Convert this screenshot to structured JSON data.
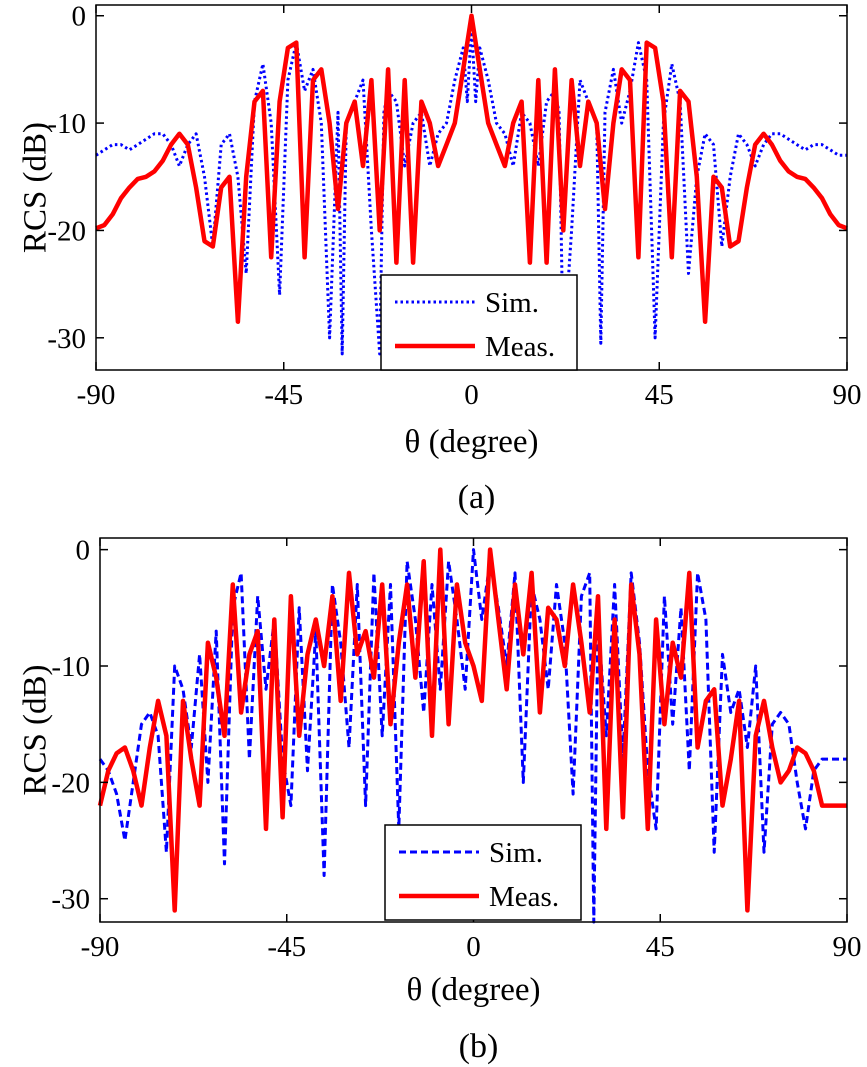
{
  "chart_data": [
    {
      "type": "line",
      "caption": "(a)",
      "xlabel": "θ (degree)",
      "ylabel": "RCS (dB)",
      "xlim": [
        -90,
        90
      ],
      "ylim": [
        -33,
        1
      ],
      "xticks": [
        "-90",
        "-45",
        "0",
        "45",
        "90"
      ],
      "yticks": [
        "0",
        "-10",
        "-20",
        "-30"
      ],
      "legend_position": "bottom-center",
      "grid": false,
      "series": [
        {
          "name": "Sim.",
          "style": "dotted",
          "color": "#0000ff",
          "x": [
            -90,
            -88,
            -86,
            -84,
            -82,
            -80,
            -78,
            -76,
            -74,
            -72,
            -70,
            -68,
            -66,
            -64,
            -62,
            -60,
            -58,
            -56,
            -54,
            -52,
            -50,
            -48,
            -46,
            -44,
            -42,
            -40,
            -38,
            -36,
            -34,
            -32,
            -31,
            -30,
            -28,
            -26,
            -24,
            -22,
            -21,
            -20,
            -18,
            -16,
            -14,
            -12,
            -10,
            -8,
            -6,
            -4,
            -2,
            -1,
            0,
            1,
            2,
            4,
            6,
            8,
            10,
            12,
            14,
            16,
            18,
            20,
            21,
            22,
            24,
            26,
            28,
            30,
            31,
            32,
            34,
            36,
            38,
            40,
            42,
            44,
            46,
            48,
            50,
            52,
            54,
            56,
            58,
            60,
            62,
            64,
            66,
            68,
            70,
            72,
            74,
            76,
            78,
            80,
            82,
            84,
            86,
            88,
            90
          ],
          "y": [
            -13,
            -12.5,
            -12,
            -12,
            -12.5,
            -12,
            -11.5,
            -11,
            -11,
            -12,
            -14,
            -12,
            -11,
            -15,
            -21.5,
            -12,
            -11,
            -15,
            -24,
            -8,
            -4.5,
            -10,
            -26,
            -6,
            -2.5,
            -7,
            -5,
            -10,
            -30,
            -9,
            -31.5,
            -10,
            -8,
            -6,
            -20,
            -31.5,
            -9,
            -7,
            -8,
            -14,
            -10,
            -9,
            -14,
            -11,
            -10,
            -6,
            -3,
            -8,
            -1,
            -8,
            -3,
            -6,
            -10,
            -11,
            -14,
            -9,
            -10,
            -14,
            -8,
            -7,
            -9,
            -31.5,
            -20,
            -6,
            -8,
            -10,
            -30.5,
            -9,
            -5,
            -10,
            -7,
            -2.5,
            -6,
            -30,
            -10,
            -4.5,
            -8,
            -24,
            -15,
            -11,
            -12,
            -21.5,
            -15,
            -11,
            -12,
            -14,
            -12,
            -11,
            -11,
            -11.5,
            -12,
            -12.5,
            -12,
            -12,
            -12.5,
            -13,
            -13
          ]
        },
        {
          "name": "Meas.",
          "style": "solid",
          "color": "#ff0000",
          "x": [
            -90,
            -88,
            -86,
            -84,
            -82,
            -80,
            -78,
            -76,
            -74,
            -72,
            -70,
            -68,
            -66,
            -64,
            -62,
            -60,
            -58,
            -56,
            -54,
            -52,
            -50,
            -48,
            -46,
            -44,
            -42,
            -40,
            -38,
            -36,
            -34,
            -32,
            -30,
            -28,
            -26,
            -24,
            -22,
            -20,
            -18,
            -16,
            -14,
            -12,
            -10,
            -8,
            -6,
            -4,
            -2,
            0,
            2,
            4,
            6,
            8,
            10,
            12,
            14,
            16,
            18,
            20,
            22,
            24,
            26,
            28,
            30,
            32,
            34,
            36,
            38,
            40,
            42,
            44,
            46,
            48,
            50,
            52,
            54,
            56,
            58,
            60,
            62,
            64,
            66,
            68,
            70,
            72,
            74,
            76,
            78,
            80,
            82,
            84,
            86,
            88,
            90
          ],
          "y": [
            -19.8,
            -19.5,
            -18.5,
            -17,
            -16,
            -15.2,
            -15,
            -14.5,
            -13.5,
            -12,
            -11,
            -12,
            -16,
            -21,
            -21.5,
            -16,
            -15,
            -28.5,
            -15,
            -8,
            -7,
            -22.5,
            -8,
            -3,
            -2.5,
            -22.5,
            -6,
            -5,
            -10,
            -18,
            -10,
            -8,
            -14,
            -6,
            -20,
            -5,
            -23,
            -6,
            -23,
            -8,
            -10,
            -14,
            -12,
            -10,
            -5,
            0,
            -5,
            -10,
            -12,
            -14,
            -10,
            -8,
            -23,
            -6,
            -23,
            -5,
            -20,
            -6,
            -14,
            -8,
            -10,
            -18,
            -10,
            -5,
            -6,
            -22.5,
            -2.5,
            -3,
            -8,
            -22.5,
            -7,
            -8,
            -15,
            -28.5,
            -15,
            -16,
            -21.5,
            -21,
            -16,
            -12,
            -11,
            -12,
            -13.5,
            -14.5,
            -15,
            -15.2,
            -16,
            -17,
            -18.5,
            -19.5,
            -19.8
          ]
        }
      ]
    },
    {
      "type": "line",
      "caption": "(b)",
      "xlabel": "θ (degree)",
      "ylabel": "RCS (dB)",
      "xlim": [
        -90,
        90
      ],
      "ylim": [
        -32,
        1
      ],
      "xticks": [
        "-90",
        "-45",
        "0",
        "45",
        "90"
      ],
      "yticks": [
        "0",
        "-10",
        "-20",
        "-30"
      ],
      "legend_position": "bottom-center",
      "grid": false,
      "series": [
        {
          "name": "Sim.",
          "style": "dashed",
          "color": "#0000ff",
          "x": [
            -90,
            -88,
            -86,
            -84,
            -82,
            -80,
            -78,
            -76,
            -74,
            -72,
            -70,
            -68,
            -66,
            -64,
            -62,
            -60,
            -58,
            -56,
            -54,
            -52,
            -50,
            -48,
            -46,
            -44,
            -42,
            -40,
            -38,
            -36,
            -34,
            -32,
            -30,
            -28,
            -26,
            -24,
            -22,
            -20,
            -18,
            -16,
            -14,
            -12,
            -10,
            -8,
            -6,
            -4,
            -2,
            0,
            2,
            4,
            6,
            8,
            10,
            12,
            14,
            16,
            18,
            20,
            22,
            24,
            26,
            28,
            29,
            30,
            32,
            34,
            36,
            38,
            40,
            42,
            44,
            46,
            48,
            50,
            52,
            54,
            56,
            58,
            60,
            62,
            64,
            66,
            68,
            70,
            72,
            74,
            76,
            78,
            80,
            82,
            84,
            86,
            88,
            90
          ],
          "y": [
            -18,
            -19,
            -21,
            -25,
            -20,
            -15,
            -14,
            -16,
            -26,
            -10,
            -12,
            -17,
            -9,
            -20,
            -7,
            -27,
            -5,
            -2,
            -18,
            -4,
            -12,
            -6,
            -18,
            -22,
            -5,
            -19,
            -7,
            -28,
            -3,
            -8,
            -17,
            -3,
            -22,
            -2,
            -16,
            -3,
            -24,
            -1,
            -6,
            -14,
            -3,
            -12,
            -1,
            -6,
            -12,
            0,
            -6,
            -1,
            -5,
            -10,
            -2,
            -20,
            -3,
            -6,
            -12,
            -3,
            -8,
            -21,
            -4,
            -2,
            -32,
            -6,
            -16,
            -3,
            -18,
            -2,
            -8,
            -19,
            -24,
            -4,
            -15,
            -5,
            -19,
            -2,
            -6,
            -26,
            -9,
            -14,
            -12,
            -17,
            -10,
            -26,
            -15,
            -14,
            -15,
            -20,
            -24,
            -19,
            -18,
            -18,
            -18,
            -18
          ]
        },
        {
          "name": "Meas.",
          "style": "solid",
          "color": "#ff0000",
          "x": [
            -90,
            -88,
            -86,
            -84,
            -82,
            -80,
            -78,
            -76,
            -74,
            -72,
            -70,
            -68,
            -66,
            -64,
            -62,
            -60,
            -58,
            -56,
            -54,
            -52,
            -50,
            -48,
            -46,
            -44,
            -42,
            -40,
            -38,
            -36,
            -34,
            -32,
            -30,
            -28,
            -26,
            -24,
            -22,
            -20,
            -18,
            -16,
            -14,
            -12,
            -10,
            -8,
            -6,
            -4,
            -2,
            0,
            2,
            4,
            6,
            8,
            10,
            12,
            14,
            16,
            18,
            20,
            22,
            24,
            26,
            28,
            30,
            32,
            34,
            36,
            38,
            40,
            42,
            44,
            46,
            48,
            50,
            52,
            54,
            56,
            58,
            60,
            62,
            64,
            66,
            68,
            70,
            72,
            74,
            76,
            78,
            80,
            82,
            84,
            86,
            88,
            90
          ],
          "y": [
            -22,
            -19,
            -17.5,
            -17,
            -19,
            -22,
            -17,
            -13,
            -16,
            -31,
            -13,
            -18,
            -22,
            -8,
            -11,
            -16,
            -3,
            -14,
            -9,
            -7,
            -24,
            -6,
            -23,
            -4,
            -16,
            -9,
            -6,
            -10,
            -4,
            -13,
            -2,
            -9,
            -7,
            -11,
            -3,
            -15,
            -8,
            -3,
            -11,
            -1,
            -16,
            0,
            -15,
            -3,
            -8,
            -10,
            -13,
            0,
            -6,
            -12,
            -3,
            -9,
            -2,
            -14,
            -5,
            -6,
            -10,
            -3,
            -8,
            -14,
            -4,
            -24,
            -6,
            -23,
            -3,
            -9,
            -24,
            -6,
            -15,
            -8,
            -11,
            -2,
            -17,
            -13,
            -12,
            -22,
            -18,
            -13,
            -31,
            -16,
            -13,
            -17,
            -20,
            -19,
            -17,
            -17.5,
            -19,
            -22,
            -22,
            -22,
            -22
          ]
        }
      ]
    }
  ]
}
